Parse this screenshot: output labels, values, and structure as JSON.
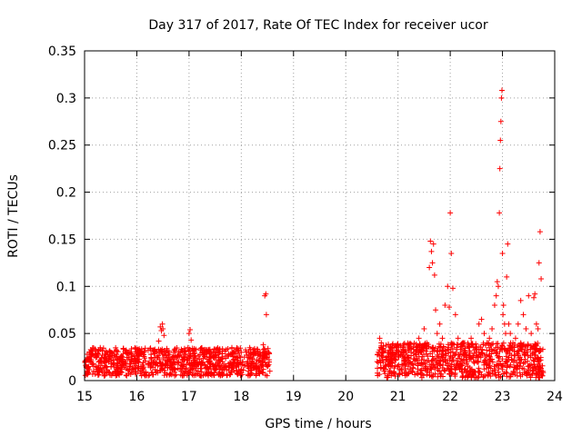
{
  "chart_data": {
    "type": "scatter",
    "title": "Day 317 of 2017, Rate Of TEC Index for receiver ucor",
    "xlabel": "GPS time / hours",
    "ylabel": "ROTI / TECUs",
    "xlim": [
      15,
      24
    ],
    "ylim": [
      0,
      0.35
    ],
    "xticks": [
      15,
      16,
      17,
      18,
      19,
      20,
      21,
      22,
      23,
      24
    ],
    "yticks": [
      0,
      0.05,
      0.1,
      0.15,
      0.2,
      0.25,
      0.3,
      0.35
    ],
    "ytick_labels": [
      "0",
      "0.05",
      "0.1",
      "0.15",
      "0.2",
      "0.25",
      "0.3",
      "0.35"
    ],
    "grid": true,
    "marker": "+",
    "marker_color": "#ff0000",
    "series": [
      {
        "name": "ROTI",
        "x": [
          15.02,
          15.05,
          15.08,
          15.1,
          15.13,
          15.17,
          15.2,
          15.23,
          15.26,
          15.3,
          15.34,
          15.38,
          15.42,
          15.47,
          15.52,
          15.58,
          15.63,
          15.7,
          15.76,
          15.82,
          15.88,
          15.95,
          16.02,
          16.08,
          16.15,
          16.22,
          16.28,
          16.35,
          16.42,
          16.45,
          16.47,
          16.49,
          16.5,
          16.52,
          16.56,
          16.62,
          16.68,
          16.74,
          16.8,
          16.86,
          16.92,
          16.98,
          17.0,
          17.02,
          17.04,
          17.1,
          17.16,
          17.22,
          17.28,
          17.34,
          17.4,
          17.46,
          17.52,
          17.58,
          17.64,
          17.7,
          17.76,
          17.82,
          17.88,
          17.94,
          18.0,
          18.06,
          18.12,
          18.18,
          18.24,
          18.3,
          18.36,
          18.42,
          18.45,
          18.47,
          18.48,
          18.5,
          18.52,
          20.65,
          20.68,
          20.72,
          20.76,
          20.8,
          20.85,
          20.9,
          20.95,
          21.0,
          21.05,
          21.1,
          21.15,
          21.2,
          21.25,
          21.3,
          21.35,
          21.4,
          21.45,
          21.5,
          21.55,
          21.6,
          21.62,
          21.64,
          21.66,
          21.68,
          21.7,
          21.72,
          21.75,
          21.8,
          21.85,
          21.9,
          21.95,
          21.98,
          22.0,
          22.02,
          22.05,
          22.1,
          22.15,
          22.2,
          22.25,
          22.3,
          22.35,
          22.4,
          22.45,
          22.5,
          22.55,
          22.6,
          22.65,
          22.7,
          22.75,
          22.8,
          22.85,
          22.88,
          22.9,
          22.92,
          22.94,
          22.95,
          22.96,
          22.97,
          22.98,
          22.99,
          23.0,
          23.01,
          23.02,
          23.04,
          23.06,
          23.08,
          23.1,
          23.12,
          23.15,
          23.2,
          23.25,
          23.3,
          23.35,
          23.4,
          23.45,
          23.5,
          23.55,
          23.6,
          23.62,
          23.65,
          23.68,
          23.7,
          23.72,
          23.74
        ],
        "y": [
          0.02,
          0.028,
          0.015,
          0.03,
          0.022,
          0.018,
          0.033,
          0.025,
          0.012,
          0.035,
          0.027,
          0.02,
          0.015,
          0.022,
          0.018,
          0.025,
          0.016,
          0.02,
          0.014,
          0.022,
          0.018,
          0.026,
          0.02,
          0.015,
          0.024,
          0.018,
          0.022,
          0.03,
          0.042,
          0.057,
          0.053,
          0.06,
          0.055,
          0.048,
          0.03,
          0.022,
          0.018,
          0.025,
          0.02,
          0.016,
          0.028,
          0.035,
          0.05,
          0.054,
          0.043,
          0.025,
          0.02,
          0.018,
          0.027,
          0.03,
          0.033,
          0.025,
          0.022,
          0.03,
          0.02,
          0.026,
          0.028,
          0.034,
          0.022,
          0.018,
          0.03,
          0.025,
          0.02,
          0.033,
          0.027,
          0.022,
          0.03,
          0.038,
          0.09,
          0.092,
          0.07,
          0.025,
          0.03,
          0.045,
          0.04,
          0.02,
          0.012,
          0.025,
          0.018,
          0.03,
          0.022,
          0.015,
          0.028,
          0.035,
          0.02,
          0.025,
          0.018,
          0.033,
          0.028,
          0.045,
          0.03,
          0.055,
          0.04,
          0.12,
          0.148,
          0.137,
          0.125,
          0.145,
          0.112,
          0.075,
          0.05,
          0.06,
          0.045,
          0.08,
          0.1,
          0.078,
          0.178,
          0.135,
          0.098,
          0.07,
          0.045,
          0.03,
          0.04,
          0.025,
          0.035,
          0.045,
          0.02,
          0.03,
          0.06,
          0.065,
          0.05,
          0.04,
          0.045,
          0.055,
          0.08,
          0.09,
          0.105,
          0.1,
          0.178,
          0.225,
          0.255,
          0.275,
          0.3,
          0.308,
          0.135,
          0.07,
          0.08,
          0.06,
          0.05,
          0.11,
          0.145,
          0.06,
          0.05,
          0.04,
          0.045,
          0.06,
          0.085,
          0.07,
          0.055,
          0.09,
          0.05,
          0.088,
          0.092,
          0.06,
          0.055,
          0.125,
          0.158,
          0.108
        ]
      }
    ],
    "background_band": {
      "description": "dense field of + markers at low values",
      "segments": [
        {
          "x_start": 15.0,
          "x_end": 18.55,
          "y_min": 0.005,
          "y_max": 0.035
        },
        {
          "x_start": 20.6,
          "x_end": 23.78,
          "y_min": 0.003,
          "y_max": 0.04
        }
      ]
    }
  }
}
